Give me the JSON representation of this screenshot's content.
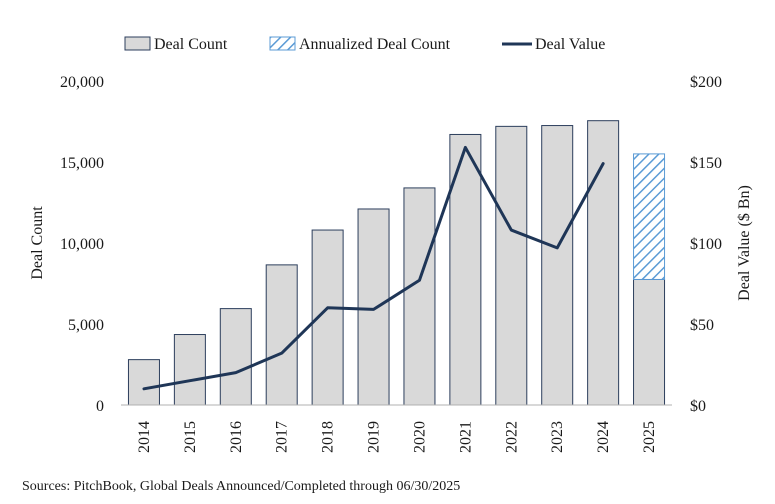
{
  "chart_data": {
    "type": "bar",
    "categories": [
      "2014",
      "2015",
      "2016",
      "2017",
      "2018",
      "2019",
      "2020",
      "2021",
      "2022",
      "2023",
      "2024",
      "2025"
    ],
    "series": [
      {
        "name": "Deal Count",
        "kind": "bar",
        "axis": "left",
        "values": [
          2800,
          4350,
          5950,
          8650,
          10800,
          12100,
          13400,
          16700,
          17200,
          17250,
          17550,
          7750
        ]
      },
      {
        "name": "Annualized Deal Count",
        "kind": "bar-hatched",
        "axis": "left",
        "values": [
          null,
          null,
          null,
          null,
          null,
          null,
          null,
          null,
          null,
          null,
          null,
          7750
        ],
        "note_total": 15500
      },
      {
        "name": "Deal Value",
        "kind": "line",
        "axis": "right",
        "values": [
          10,
          15,
          20,
          32,
          60,
          59,
          77,
          159,
          108,
          97,
          149,
          null
        ]
      }
    ],
    "ylabel": "Deal Count",
    "y2label": "Deal Value ($ Bn)",
    "ylim": [
      0,
      20000
    ],
    "y2lim": [
      0,
      200
    ],
    "yticks": [
      "0",
      "5,000",
      "10,000",
      "15,000",
      "20,000"
    ],
    "y2ticks": [
      "$0",
      "$50",
      "$100",
      "$150",
      "$200"
    ],
    "grid": false,
    "legend_position": "top",
    "colors": {
      "bar": "#d9d9d9",
      "bar_edge": "#2c3e5c",
      "hatch": "#5b9bd5",
      "line": "#1f3657"
    }
  },
  "source": "Sources: PitchBook, Global Deals Announced/Completed through 06/30/2025"
}
